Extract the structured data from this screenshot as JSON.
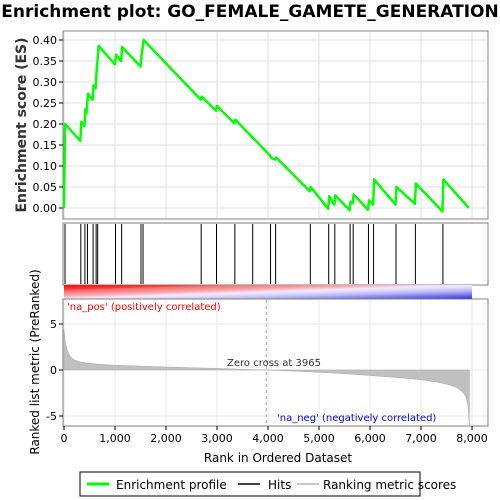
{
  "title": "Enrichment plot: GO_FEMALE_GAMETE_GENERATION",
  "colors": {
    "profile": "#00ff00",
    "hits": "#000000",
    "metric_fill": "#c0c0c0",
    "pos_label": "#ff0000",
    "neg_label": "#0000ff"
  },
  "annotations": {
    "pos": "'na_pos' (positively correlated)",
    "neg": "'na_neg' (negatively correlated)",
    "zero_cross": "Zero cross at 3965"
  },
  "legend": {
    "profile": "Enrichment profile",
    "hits": "Hits",
    "metric": "Ranking metric scores"
  },
  "chart_data": [
    {
      "type": "line",
      "name": "enrichment_profile",
      "ylabel": "Enrichment score (ES)",
      "xlim": [
        0,
        8200
      ],
      "ylim": [
        -0.02,
        0.42
      ],
      "yticks": [
        0.0,
        0.05,
        0.1,
        0.15,
        0.2,
        0.25,
        0.3,
        0.35,
        0.4
      ],
      "ytick_labels": [
        "0.00",
        "0.05",
        "0.10",
        "0.15",
        "0.20",
        "0.25",
        "0.30",
        "0.35",
        "0.40"
      ],
      "grid": true,
      "x": [
        0,
        20,
        320,
        340,
        400,
        420,
        440,
        470,
        560,
        580,
        620,
        640,
        680,
        1000,
        1020,
        1120,
        1140,
        1500,
        1520,
        1560,
        2680,
        2700,
        2980,
        3000,
        3340,
        3360,
        4040,
        4060,
        4140,
        4160,
        4820,
        4840,
        5180,
        5200,
        5300,
        5320,
        5600,
        5620,
        5660,
        5680,
        5960,
        5980,
        6060,
        6080,
        6500,
        6520,
        6880,
        6900,
        7420,
        7440,
        7940
      ],
      "y": [
        0.0,
        0.2,
        0.16,
        0.205,
        0.195,
        0.235,
        0.225,
        0.272,
        0.258,
        0.292,
        0.285,
        0.325,
        0.386,
        0.342,
        0.365,
        0.35,
        0.383,
        0.337,
        0.362,
        0.4,
        0.258,
        0.265,
        0.232,
        0.243,
        0.202,
        0.21,
        0.125,
        0.12,
        0.115,
        0.12,
        0.04,
        0.05,
        -0.002,
        0.028,
        0.008,
        0.03,
        -0.005,
        0.015,
        0.012,
        0.032,
        -0.004,
        0.018,
        0.008,
        0.068,
        0.008,
        0.05,
        0.01,
        0.058,
        -0.008,
        0.068,
        0.0
      ]
    },
    {
      "type": "hits",
      "name": "hits",
      "x": [
        20,
        330,
        410,
        460,
        570,
        630,
        660,
        1010,
        1130,
        1510,
        1550,
        2690,
        2990,
        3350,
        3700,
        4050,
        4150,
        4830,
        5190,
        5310,
        5610,
        5670,
        5970,
        6070,
        6510,
        6890,
        7430
      ]
    },
    {
      "type": "area",
      "name": "ranking_metric",
      "xlabel": "Rank in Ordered Dataset",
      "ylabel": "Ranked list metric (PreRanked)",
      "xlim": [
        0,
        8200
      ],
      "ylim": [
        -6.5,
        9.0
      ],
      "xticks": [
        0,
        1000,
        2000,
        3000,
        4000,
        5000,
        6000,
        7000,
        8000
      ],
      "xtick_labels": [
        "0",
        "1,000",
        "2,000",
        "3,000",
        "4,000",
        "5,000",
        "6,000",
        "7,000",
        "8,000"
      ],
      "yticks": [
        -5,
        0,
        5
      ],
      "ytick_labels": [
        "-5",
        "0",
        "5"
      ],
      "x": [
        0,
        20,
        60,
        120,
        200,
        300,
        450,
        700,
        1000,
        1500,
        2000,
        2500,
        3000,
        3500,
        3965,
        4500,
        5000,
        5500,
        6000,
        6500,
        7000,
        7300,
        7550,
        7700,
        7800,
        7880,
        7920,
        7950
      ],
      "y": [
        4.4,
        3.2,
        2.2,
        1.5,
        1.1,
        0.9,
        0.75,
        0.62,
        0.52,
        0.42,
        0.33,
        0.25,
        0.17,
        0.08,
        0.0,
        -0.12,
        -0.25,
        -0.4,
        -0.6,
        -0.8,
        -1.05,
        -1.3,
        -1.6,
        -1.9,
        -2.3,
        -2.9,
        -3.8,
        -6.0
      ]
    }
  ]
}
